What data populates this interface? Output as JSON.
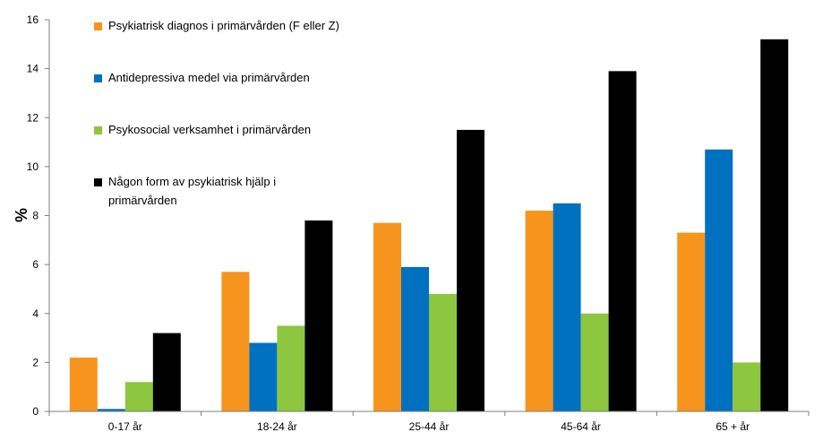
{
  "chart_data": {
    "type": "bar",
    "ylabel": "%",
    "ylim": [
      0,
      16
    ],
    "yticks": [
      0,
      2,
      4,
      6,
      8,
      10,
      12,
      14,
      16
    ],
    "grid": false,
    "legend_position": "top-left",
    "categories": [
      "0-17 år",
      "18-24 år",
      "25-44 år",
      "45-64 år",
      "65 + år"
    ],
    "series": [
      {
        "name": "Psykiatrisk diagnos i primärvården (F eller Z)",
        "color": "#F7941D",
        "values": [
          2.2,
          5.7,
          7.7,
          8.2,
          7.3
        ]
      },
      {
        "name": "Antidepressiva medel via primärvården",
        "color": "#0070C0",
        "values": [
          0.1,
          2.8,
          5.9,
          8.5,
          10.7
        ]
      },
      {
        "name": "Psykosocial verksamhet i primärvården",
        "color": "#8DC63F",
        "values": [
          1.2,
          3.5,
          4.8,
          4.0,
          2.0
        ]
      },
      {
        "name_lines": [
          "Någon form av psykiatrisk hjälp i",
          "primärvården"
        ],
        "color": "#000000",
        "values": [
          3.2,
          7.8,
          11.5,
          13.9,
          15.2
        ]
      }
    ]
  }
}
